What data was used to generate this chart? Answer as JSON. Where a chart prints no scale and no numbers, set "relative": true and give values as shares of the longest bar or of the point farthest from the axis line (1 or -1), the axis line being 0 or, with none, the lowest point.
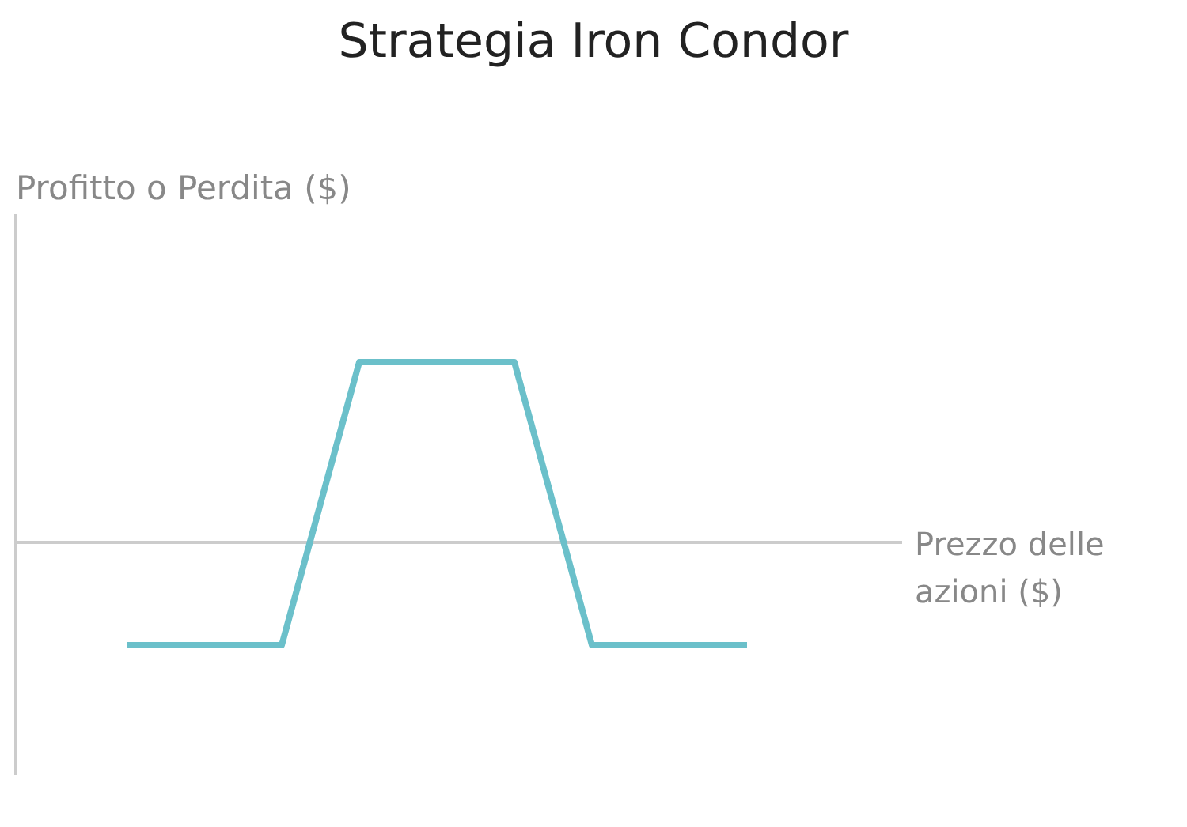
{
  "chart_data": {
    "type": "line",
    "title": "Strategia Iron Condor",
    "xlabel": "Prezzo delle azioni ($)",
    "ylabel": "Profitto o Perdita ($)",
    "relative": true,
    "categories": [
      null,
      null,
      null,
      null,
      null,
      null,
      null,
      null,
      null
    ],
    "series": [
      {
        "color": "#6bc0ca",
        "values": [
          -0.57,
          -0.57,
          -0.57,
          1,
          1,
          1,
          -0.57,
          -0.57,
          -0.57
        ]
      }
    ]
  }
}
